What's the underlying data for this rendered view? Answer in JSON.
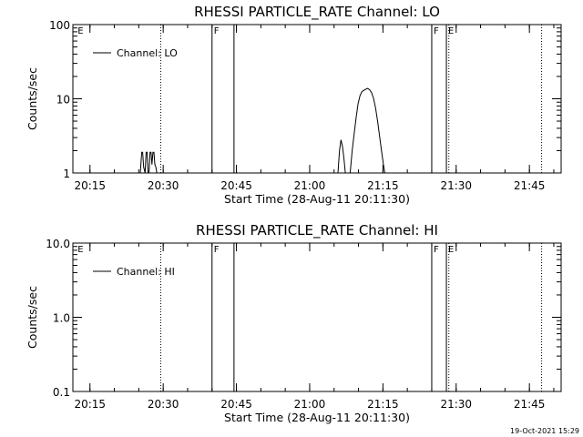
{
  "footer": {
    "timestamp": "19-Oct-2021 15:29"
  },
  "chart_data": [
    {
      "type": "line",
      "title": "RHESSI PARTICLE_RATE Channel: LO",
      "xlabel": "Start Time (28-Aug-11 20:11:30)",
      "ylabel": "Counts/sec",
      "yscale": "log",
      "xlim_min_since_start": [
        0,
        100
      ],
      "ylim": [
        1,
        100
      ],
      "x_ticks": [
        {
          "min": 3.5,
          "label": "20:15"
        },
        {
          "min": 18.5,
          "label": "20:30"
        },
        {
          "min": 33.5,
          "label": "20:45"
        },
        {
          "min": 48.5,
          "label": "21:00"
        },
        {
          "min": 63.5,
          "label": "21:15"
        },
        {
          "min": 78.5,
          "label": "21:30"
        },
        {
          "min": 93.5,
          "label": "21:45"
        }
      ],
      "y_ticks": [
        {
          "value": 1,
          "label": "1"
        },
        {
          "value": 10,
          "label": "10"
        },
        {
          "value": 100,
          "label": "100"
        }
      ],
      "legend": {
        "label": "Channel: LO",
        "position": "top-left"
      },
      "markers": [
        {
          "min": 0.6,
          "label": "E",
          "style": "none"
        },
        {
          "min": 18.0,
          "label": "",
          "style": "dotted"
        },
        {
          "min": 28.5,
          "label": "F",
          "style": "solid"
        },
        {
          "min": 33.0,
          "label": "",
          "style": "solid"
        },
        {
          "min": 73.5,
          "label": "F",
          "style": "solid"
        },
        {
          "min": 76.5,
          "label": "E",
          "style": "solid"
        },
        {
          "min": 77.0,
          "label": "",
          "style": "dotted"
        },
        {
          "min": 96.0,
          "label": "",
          "style": "dotted"
        }
      ],
      "series": [
        {
          "points": [
            [
              13.8,
              1
            ],
            [
              14.1,
              1.9
            ],
            [
              14.3,
              1.9
            ],
            [
              14.5,
              1.2
            ],
            [
              14.8,
              1
            ],
            [
              15.0,
              1.9
            ],
            [
              15.2,
              1.9
            ],
            [
              15.4,
              1
            ],
            [
              15.6,
              1
            ],
            [
              15.8,
              1.9
            ],
            [
              16.0,
              1.9
            ],
            [
              16.2,
              1.3
            ],
            [
              16.4,
              1.9
            ],
            [
              16.6,
              1.9
            ],
            [
              16.8,
              1.3
            ],
            [
              17.0,
              1.2
            ],
            [
              17.2,
              1
            ]
          ]
        },
        {
          "points": [
            [
              54.3,
              1
            ],
            [
              54.6,
              2.0
            ],
            [
              54.9,
              2.8
            ],
            [
              55.2,
              2.3
            ],
            [
              55.5,
              1.6
            ],
            [
              55.8,
              1
            ],
            [
              56.0,
              1
            ],
            [
              56.8,
              1
            ],
            [
              57.2,
              2.0
            ],
            [
              57.6,
              3.3
            ],
            [
              58.0,
              5.5
            ],
            [
              58.4,
              8.5
            ],
            [
              58.8,
              11.0
            ],
            [
              59.2,
              12.5
            ],
            [
              59.6,
              13.0
            ],
            [
              60.0,
              13.5
            ],
            [
              60.4,
              13.8
            ],
            [
              60.8,
              13.2
            ],
            [
              61.2,
              12.0
            ],
            [
              61.6,
              10.0
            ],
            [
              62.0,
              7.5
            ],
            [
              62.4,
              5.0
            ],
            [
              62.8,
              3.2
            ],
            [
              63.2,
              2.0
            ],
            [
              63.6,
              1.3
            ],
            [
              63.9,
              1
            ]
          ]
        }
      ]
    },
    {
      "type": "line",
      "title": "RHESSI PARTICLE_RATE Channel: HI",
      "xlabel": "Start Time (28-Aug-11 20:11:30)",
      "ylabel": "Counts/sec",
      "yscale": "log",
      "xlim_min_since_start": [
        0,
        100
      ],
      "ylim": [
        0.1,
        10
      ],
      "x_ticks": [
        {
          "min": 3.5,
          "label": "20:15"
        },
        {
          "min": 18.5,
          "label": "20:30"
        },
        {
          "min": 33.5,
          "label": "20:45"
        },
        {
          "min": 48.5,
          "label": "21:00"
        },
        {
          "min": 63.5,
          "label": "21:15"
        },
        {
          "min": 78.5,
          "label": "21:30"
        },
        {
          "min": 93.5,
          "label": "21:45"
        }
      ],
      "y_ticks": [
        {
          "value": 0.1,
          "label": "0.1"
        },
        {
          "value": 1,
          "label": "1.0"
        },
        {
          "value": 10,
          "label": "10.0"
        }
      ],
      "legend": {
        "label": "Channel: HI",
        "position": "top-left"
      },
      "markers": [
        {
          "min": 0.6,
          "label": "E",
          "style": "none"
        },
        {
          "min": 18.0,
          "label": "",
          "style": "dotted"
        },
        {
          "min": 28.5,
          "label": "F",
          "style": "solid"
        },
        {
          "min": 33.0,
          "label": "",
          "style": "solid"
        },
        {
          "min": 73.5,
          "label": "F",
          "style": "solid"
        },
        {
          "min": 76.5,
          "label": "E",
          "style": "solid"
        },
        {
          "min": 77.0,
          "label": "",
          "style": "dotted"
        },
        {
          "min": 96.0,
          "label": "",
          "style": "dotted"
        }
      ],
      "series": []
    }
  ]
}
